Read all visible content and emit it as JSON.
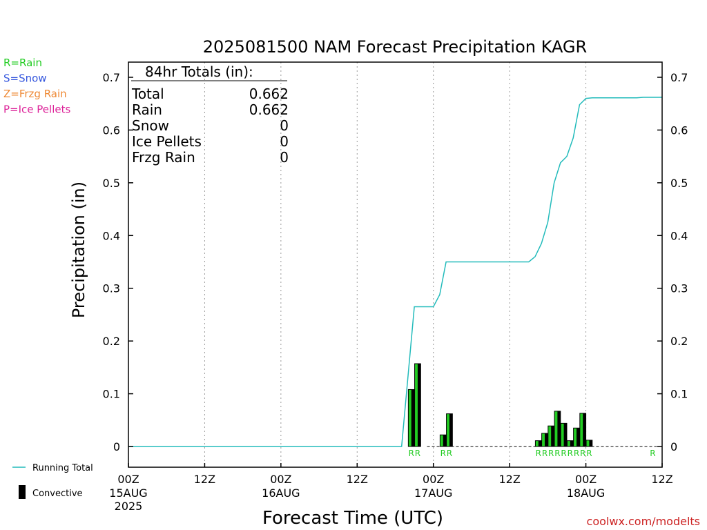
{
  "chart_data": {
    "type": "bar",
    "title": "2025081500 NAM Forecast Precipitation KAGR",
    "ylabel": "Precipitation  (in)",
    "xlabel": "Forecast Time (UTC)",
    "ylim": [
      0,
      0.7
    ],
    "y_ticks": [
      "0",
      "0.1",
      "0.2",
      "0.3",
      "0.4",
      "0.5",
      "0.6",
      "0.7"
    ],
    "x_unit": "forecast hour",
    "xlim": [
      0,
      84
    ],
    "x_ticks": [
      {
        "hour": 0,
        "label": "00Z",
        "sub": "15AUG",
        "sub2": "2025"
      },
      {
        "hour": 12,
        "label": "12Z",
        "sub": "",
        "sub2": ""
      },
      {
        "hour": 24,
        "label": "00Z",
        "sub": "16AUG",
        "sub2": ""
      },
      {
        "hour": 36,
        "label": "12Z",
        "sub": "",
        "sub2": ""
      },
      {
        "hour": 48,
        "label": "00Z",
        "sub": "17AUG",
        "sub2": ""
      },
      {
        "hour": 60,
        "label": "12Z",
        "sub": "",
        "sub2": ""
      },
      {
        "hour": 72,
        "label": "00Z",
        "sub": "18AUG",
        "sub2": ""
      },
      {
        "hour": 84,
        "label": "12Z",
        "sub": "",
        "sub2": ""
      }
    ],
    "grid": "vertical dotted",
    "legend": {
      "ptypes": [
        {
          "text": "R=Rain",
          "color": "#22cc22"
        },
        {
          "text": "S=Snow",
          "color": "#3355dd"
        },
        {
          "text": "Z=Frzg Rain",
          "color": "#ee8833"
        },
        {
          "text": "P=Ice Pellets",
          "color": "#dd2299"
        }
      ],
      "running_total": "Running Total",
      "convective": "Convective"
    },
    "totals": {
      "header": "84hr Totals (in):",
      "rows": [
        {
          "label": "Total",
          "value": "0.662"
        },
        {
          "label": "Rain",
          "value": "0.662"
        },
        {
          "label": "Snow",
          "value": "0"
        },
        {
          "label": "Ice Pellets",
          "value": "0"
        },
        {
          "label": "Frzg Rain",
          "value": "0"
        }
      ]
    },
    "series": [
      {
        "name": "Running Total",
        "color": "#22bbbb",
        "points": [
          [
            0,
            0
          ],
          [
            43,
            0
          ],
          [
            45,
            0.265
          ],
          [
            48,
            0.265
          ],
          [
            49,
            0.288
          ],
          [
            50,
            0.35
          ],
          [
            63,
            0.35
          ],
          [
            64,
            0.36
          ],
          [
            65,
            0.385
          ],
          [
            66,
            0.425
          ],
          [
            67,
            0.5
          ],
          [
            68,
            0.538
          ],
          [
            69,
            0.55
          ],
          [
            70,
            0.585
          ],
          [
            71,
            0.648
          ],
          [
            72,
            0.66
          ],
          [
            73,
            0.661
          ],
          [
            80,
            0.661
          ],
          [
            81,
            0.662
          ],
          [
            84,
            0.662
          ]
        ]
      },
      {
        "name": "Convective",
        "color": "#22cc22",
        "bars": [
          {
            "hour": 45,
            "value": 0.108,
            "ptype": "R"
          },
          {
            "hour": 46,
            "value": 0.157,
            "ptype": "R"
          },
          {
            "hour": 50,
            "value": 0.022,
            "ptype": "R"
          },
          {
            "hour": 51,
            "value": 0.062,
            "ptype": "R"
          },
          {
            "hour": 65,
            "value": 0.011,
            "ptype": "R"
          },
          {
            "hour": 66,
            "value": 0.025,
            "ptype": "R"
          },
          {
            "hour": 67,
            "value": 0.039,
            "ptype": "R"
          },
          {
            "hour": 68,
            "value": 0.067,
            "ptype": "R"
          },
          {
            "hour": 69,
            "value": 0.044,
            "ptype": "R"
          },
          {
            "hour": 70,
            "value": 0.011,
            "ptype": "R"
          },
          {
            "hour": 71,
            "value": 0.035,
            "ptype": "R"
          },
          {
            "hour": 72,
            "value": 0.063,
            "ptype": "R"
          },
          {
            "hour": 73,
            "value": 0.012,
            "ptype": "R"
          },
          {
            "hour": 83,
            "value": 0.0,
            "ptype": "R"
          }
        ]
      }
    ],
    "watermark": "coolwx.com/modelts"
  }
}
